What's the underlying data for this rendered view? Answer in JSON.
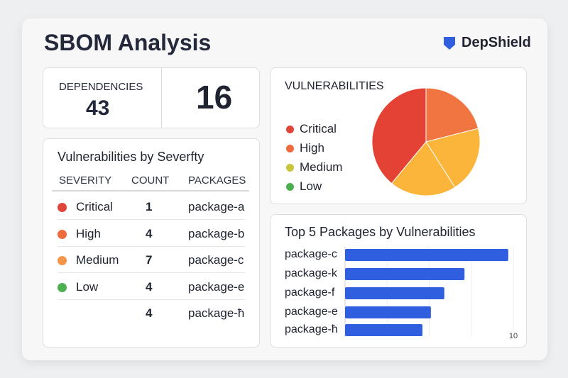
{
  "header": {
    "title": "SBOM Analysis",
    "brand": "DepShield",
    "brand_icon": "shield-icon",
    "brand_color": "#2f5fde"
  },
  "summary": {
    "label": "DEPENDENCIES",
    "value": "43",
    "big_value": "16"
  },
  "severity_table": {
    "title": "Vulnerabilities by Severfty",
    "columns": [
      "SEVERITY",
      "COUNT",
      "PACKAGES"
    ],
    "rows": [
      {
        "severity": "Critical",
        "count": "1",
        "package": "package-a",
        "color": "#e0453a"
      },
      {
        "severity": "High",
        "count": "4",
        "package": "package-b",
        "color": "#ee6b3c"
      },
      {
        "severity": "Medium",
        "count": "7",
        "package": "package-c",
        "color": "#f5954a"
      },
      {
        "severity": "Low",
        "count": "4",
        "package": "package-e",
        "color": "#4caf50"
      },
      {
        "severity": "",
        "count": "4",
        "package": "package-ħ",
        "color": ""
      }
    ]
  },
  "chart_data": [
    {
      "type": "pie",
      "title": "VULNERABILITIES",
      "legend": [
        {
          "label": "Critical",
          "color": "#e0453a"
        },
        {
          "label": "High",
          "color": "#ee6b3c"
        },
        {
          "label": "Medium",
          "color": "#c9c53c"
        },
        {
          "label": "Low",
          "color": "#4caf50"
        }
      ],
      "slices": [
        {
          "value": 21,
          "color": "#f07540"
        },
        {
          "value": 20,
          "color": "#fbb53a"
        },
        {
          "value": 20,
          "color": "#fbb53a"
        },
        {
          "value": 39,
          "color": "#e34234"
        }
      ]
    },
    {
      "type": "bar",
      "orientation": "horizontal",
      "title": "Top 5 Packages by Vulnerabilities",
      "categories": [
        "package-c",
        "package-k",
        "package-f",
        "package-e",
        "package-ħ"
      ],
      "values": [
        9.7,
        7.1,
        5.9,
        5.1,
        4.6
      ],
      "xlim": [
        0,
        10
      ],
      "tick_label": "10",
      "color": "#2f5fde",
      "grid": true
    }
  ]
}
